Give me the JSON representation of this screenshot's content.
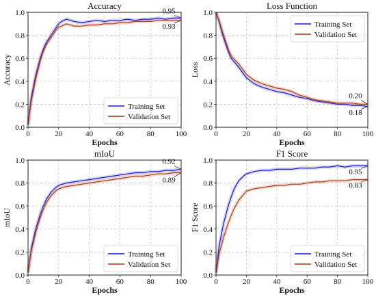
{
  "chart_data": [
    {
      "type": "line",
      "title": "Accuracy",
      "xlabel": "Epochs",
      "ylabel": "Accuracy",
      "xlim": [
        0,
        100
      ],
      "ylim": [
        0.0,
        1.0
      ],
      "xticks": [
        "0",
        "20",
        "40",
        "60",
        "80",
        "100"
      ],
      "yticks": [
        "0.0",
        "0.2",
        "0.4",
        "0.6",
        "0.8",
        "1.0"
      ],
      "grid": true,
      "legend_position": "lower-right",
      "x": [
        0,
        2,
        5,
        8,
        10,
        12,
        15,
        18,
        20,
        22,
        25,
        28,
        30,
        35,
        40,
        45,
        50,
        55,
        60,
        65,
        70,
        75,
        80,
        85,
        90,
        95,
        100
      ],
      "series": [
        {
          "name": "Training Set",
          "color": "#1a1acc",
          "values": [
            0.02,
            0.25,
            0.45,
            0.6,
            0.68,
            0.74,
            0.8,
            0.86,
            0.9,
            0.92,
            0.94,
            0.93,
            0.92,
            0.91,
            0.92,
            0.93,
            0.92,
            0.93,
            0.93,
            0.94,
            0.93,
            0.94,
            0.94,
            0.95,
            0.94,
            0.95,
            0.95
          ]
        },
        {
          "name": "Validation Set",
          "color": "#b03a14",
          "values": [
            0.02,
            0.22,
            0.42,
            0.58,
            0.66,
            0.72,
            0.78,
            0.84,
            0.87,
            0.88,
            0.9,
            0.89,
            0.88,
            0.88,
            0.89,
            0.89,
            0.9,
            0.9,
            0.91,
            0.91,
            0.92,
            0.92,
            0.92,
            0.93,
            0.93,
            0.93,
            0.93
          ]
        }
      ],
      "annotations": [
        "0.95",
        "0.93"
      ]
    },
    {
      "type": "line",
      "title": "Loss Function",
      "xlabel": "Epochs",
      "ylabel": "Loss",
      "xlim": [
        0,
        100
      ],
      "ylim": [
        0.0,
        1.0
      ],
      "xticks": [
        "0",
        "20",
        "40",
        "60",
        "80",
        "100"
      ],
      "yticks": [
        "0.0",
        "0.2",
        "0.4",
        "0.6",
        "0.8",
        "1.0"
      ],
      "grid": true,
      "legend_position": "upper-right",
      "x": [
        0,
        2,
        4,
        6,
        8,
        10,
        15,
        20,
        25,
        30,
        35,
        40,
        45,
        50,
        55,
        60,
        65,
        70,
        75,
        80,
        85,
        90,
        95,
        100
      ],
      "series": [
        {
          "name": "Training Set",
          "color": "#1a1acc",
          "values": [
            1.0,
            0.92,
            0.82,
            0.74,
            0.66,
            0.6,
            0.52,
            0.43,
            0.38,
            0.35,
            0.33,
            0.31,
            0.3,
            0.28,
            0.26,
            0.25,
            0.23,
            0.22,
            0.21,
            0.2,
            0.2,
            0.19,
            0.19,
            0.18
          ]
        },
        {
          "name": "Validation Set",
          "color": "#b03a14",
          "values": [
            1.0,
            0.93,
            0.84,
            0.76,
            0.68,
            0.62,
            0.55,
            0.46,
            0.41,
            0.38,
            0.36,
            0.34,
            0.33,
            0.31,
            0.28,
            0.26,
            0.24,
            0.23,
            0.22,
            0.21,
            0.21,
            0.21,
            0.2,
            0.2
          ]
        }
      ],
      "annotations": [
        "0.20",
        "0.18"
      ]
    },
    {
      "type": "line",
      "title": "mIoU",
      "xlabel": "Epochs",
      "ylabel": "mIoU",
      "xlim": [
        0,
        100
      ],
      "ylim": [
        0.0,
        1.0
      ],
      "xticks": [
        "0",
        "20",
        "40",
        "60",
        "80",
        "100"
      ],
      "yticks": [
        "0.0",
        "0.2",
        "0.4",
        "0.6",
        "0.8",
        "1.0"
      ],
      "grid": true,
      "legend_position": "lower-right",
      "x": [
        0,
        2,
        5,
        8,
        10,
        12,
        15,
        18,
        20,
        25,
        30,
        35,
        40,
        45,
        50,
        55,
        60,
        65,
        70,
        75,
        80,
        85,
        90,
        95,
        100
      ],
      "series": [
        {
          "name": "Training Set",
          "color": "#1a1acc",
          "values": [
            0.02,
            0.22,
            0.4,
            0.53,
            0.6,
            0.66,
            0.72,
            0.76,
            0.78,
            0.8,
            0.81,
            0.82,
            0.83,
            0.84,
            0.85,
            0.86,
            0.87,
            0.88,
            0.89,
            0.89,
            0.9,
            0.9,
            0.91,
            0.91,
            0.92
          ]
        },
        {
          "name": "Validation Set",
          "color": "#b03a14",
          "values": [
            0.02,
            0.2,
            0.37,
            0.5,
            0.57,
            0.63,
            0.69,
            0.73,
            0.75,
            0.77,
            0.78,
            0.79,
            0.8,
            0.81,
            0.82,
            0.83,
            0.84,
            0.85,
            0.86,
            0.86,
            0.87,
            0.88,
            0.88,
            0.89,
            0.89
          ]
        }
      ],
      "annotations": [
        "0.92",
        "0.89"
      ]
    },
    {
      "type": "line",
      "title": "F1 Score",
      "xlabel": "Epochs",
      "ylabel": "F1 Score",
      "xlim": [
        0,
        100
      ],
      "ylim": [
        0.0,
        1.0
      ],
      "xticks": [
        "0",
        "20",
        "40",
        "60",
        "80",
        "100"
      ],
      "yticks": [
        "0.0",
        "0.2",
        "0.4",
        "0.6",
        "0.8",
        "1.0"
      ],
      "grid": true,
      "legend_position": "lower-right",
      "x": [
        0,
        2,
        5,
        8,
        10,
        12,
        15,
        18,
        20,
        25,
        30,
        35,
        40,
        45,
        50,
        55,
        60,
        65,
        70,
        75,
        80,
        85,
        90,
        95,
        100
      ],
      "series": [
        {
          "name": "Training Set",
          "color": "#1a1acc",
          "values": [
            0.02,
            0.25,
            0.45,
            0.6,
            0.68,
            0.75,
            0.82,
            0.86,
            0.88,
            0.9,
            0.91,
            0.91,
            0.92,
            0.92,
            0.92,
            0.93,
            0.93,
            0.93,
            0.94,
            0.94,
            0.95,
            0.94,
            0.95,
            0.95,
            0.95
          ]
        },
        {
          "name": "Validation Set",
          "color": "#b03a14",
          "values": [
            0.02,
            0.18,
            0.33,
            0.45,
            0.52,
            0.58,
            0.65,
            0.7,
            0.73,
            0.75,
            0.76,
            0.77,
            0.78,
            0.78,
            0.79,
            0.79,
            0.8,
            0.81,
            0.81,
            0.82,
            0.82,
            0.82,
            0.83,
            0.83,
            0.83
          ]
        }
      ],
      "annotations": [
        "0.95",
        "0.83"
      ]
    }
  ]
}
